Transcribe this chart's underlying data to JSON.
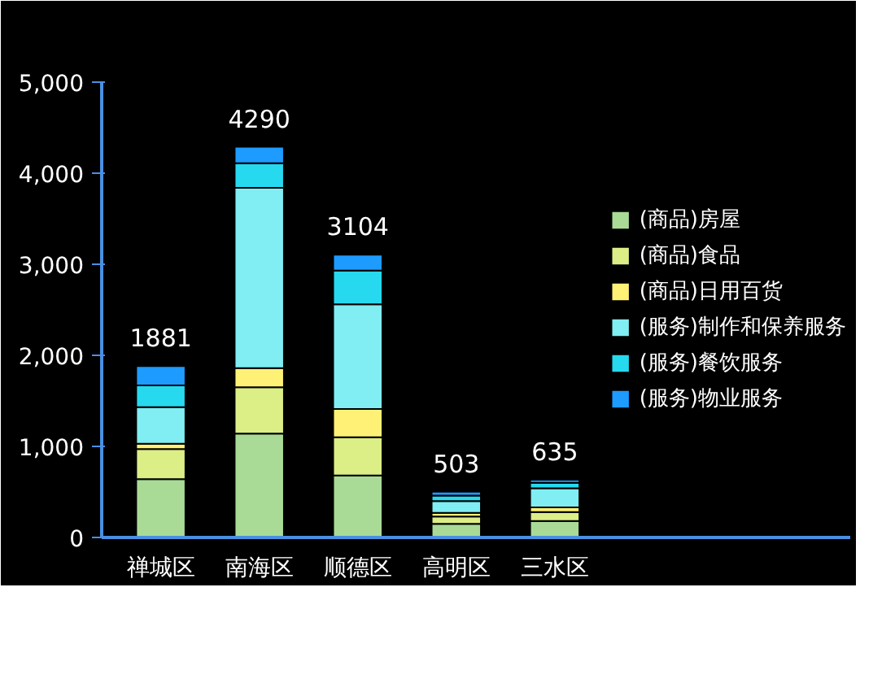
{
  "chart_data": {
    "type": "bar",
    "stacked": true,
    "categories": [
      "禅城区",
      "南海区",
      "顺德区",
      "高明区",
      "三水区"
    ],
    "series": [
      {
        "name": "(商品)房屋",
        "color": "#a9db96",
        "values": [
          640,
          1140,
          680,
          150,
          180
        ]
      },
      {
        "name": "(商品)食品",
        "color": "#dcee86",
        "values": [
          330,
          510,
          420,
          80,
          100
        ]
      },
      {
        "name": "(商品)日用百货",
        "color": "#fff176",
        "values": [
          60,
          210,
          310,
          40,
          50
        ]
      },
      {
        "name": "(服务)制作和保养服务",
        "color": "#80eef2",
        "values": [
          400,
          1980,
          1150,
          130,
          210
        ]
      },
      {
        "name": "(服务)餐饮服务",
        "color": "#26d9ef",
        "values": [
          240,
          270,
          370,
          60,
          60
        ]
      },
      {
        "name": "(服务)物业服务",
        "color": "#1e9bff",
        "values": [
          211,
          180,
          174,
          43,
          35
        ]
      }
    ],
    "totals": [
      "1881",
      "4290",
      "3104",
      "503",
      "635"
    ],
    "ylim": [
      0,
      5000
    ],
    "yticks": [
      {
        "value": 0,
        "label": "0"
      },
      {
        "value": 1000,
        "label": "1,000"
      },
      {
        "value": 2000,
        "label": "2,000"
      },
      {
        "value": 3000,
        "label": "3,000"
      },
      {
        "value": 4000,
        "label": "4,000"
      },
      {
        "value": 5000,
        "label": "5,000"
      }
    ],
    "grid": false,
    "legend": "right"
  }
}
